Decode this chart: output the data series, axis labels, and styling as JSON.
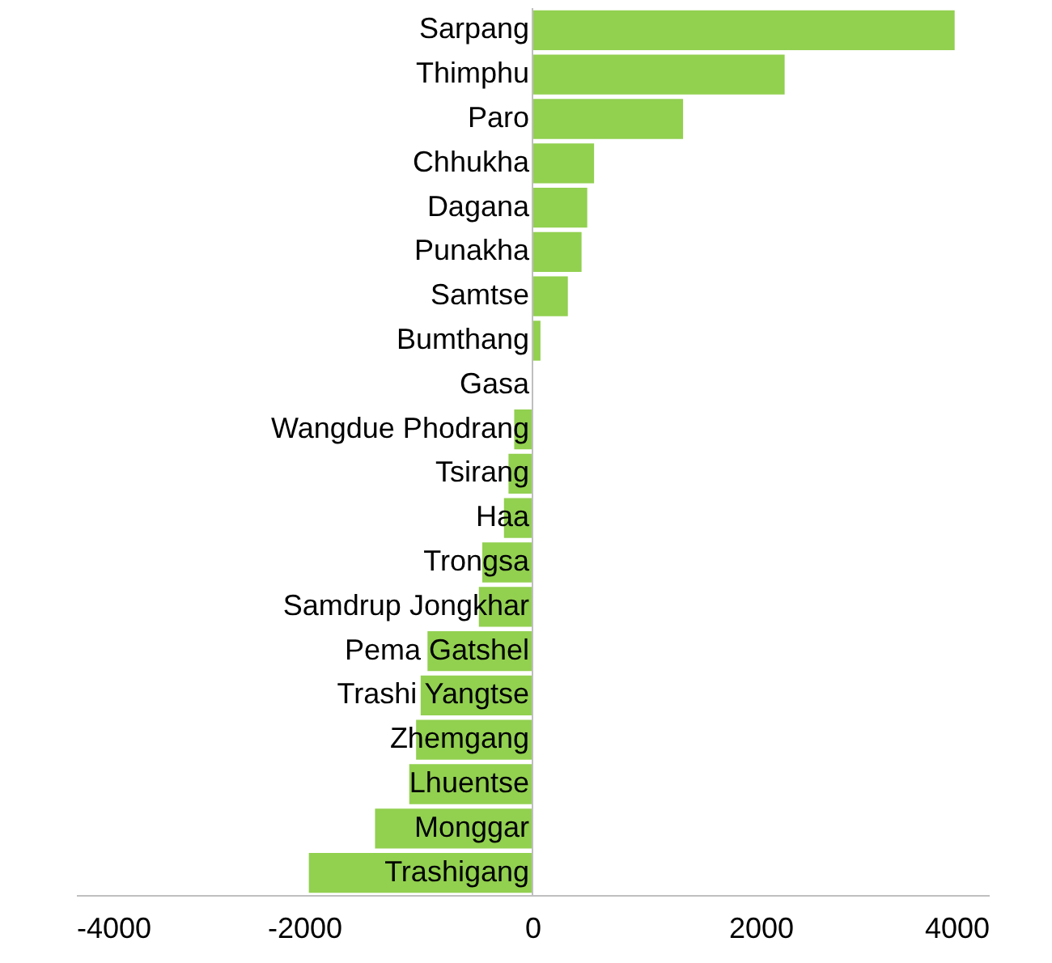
{
  "chart_data": {
    "type": "bar",
    "orientation": "horizontal",
    "color": "#92d050",
    "categories": [
      "Sarpang",
      "Thimphu",
      "Paro",
      "Chhukha",
      "Dagana",
      "Punakha",
      "Samtse",
      "Bumthang",
      "Gasa",
      "Wangdue Phodrang",
      "Tsirang",
      "Haa",
      "Trongsa",
      "Samdrup Jongkhar",
      "Pema Gatshel",
      "Trashi Yangtse",
      "Zhemgang",
      "Lhuentse",
      "Monggar",
      "Trashigang"
    ],
    "values": [
      3700,
      2210,
      1320,
      540,
      480,
      430,
      310,
      70,
      0,
      -160,
      -210,
      -250,
      -440,
      -470,
      -920,
      -980,
      -1020,
      -1080,
      -1380,
      -1960
    ],
    "xlim": [
      -4000,
      4000
    ],
    "xticks": [
      -4000,
      -2000,
      0,
      2000,
      4000
    ],
    "grid": false
  }
}
